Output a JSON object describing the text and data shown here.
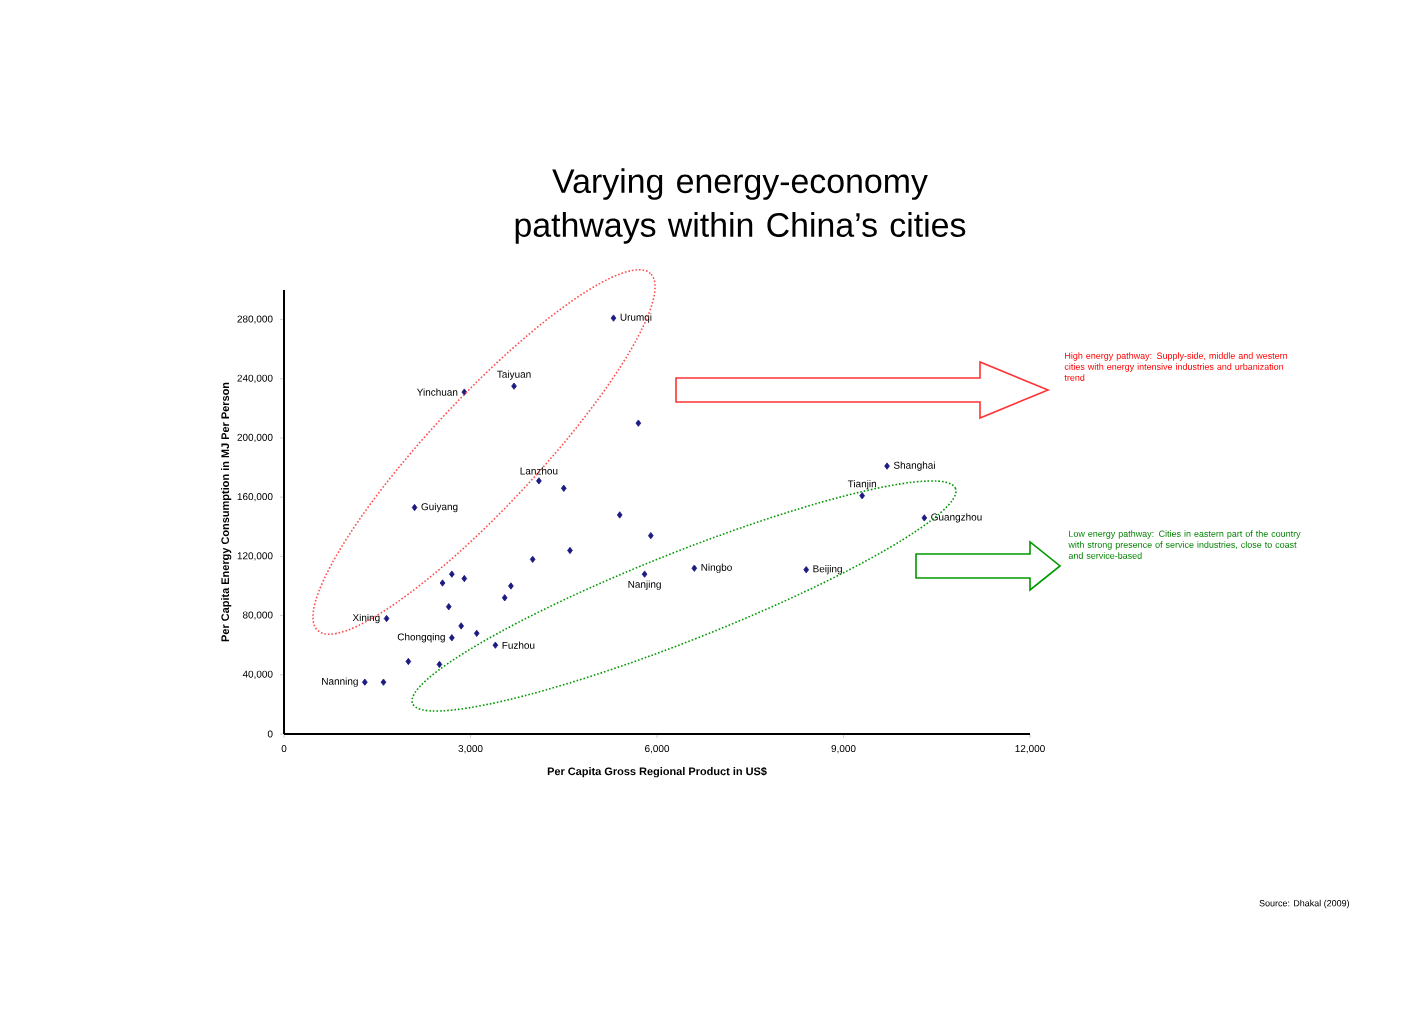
{
  "chart_data": {
    "type": "scatter",
    "title": "Varying energy-economy pathways within China’s cities",
    "xlabel": "Per Capita Gross Regional Product in US$",
    "ylabel": "Per Capita Energy Consumption in MJ Per Person",
    "x": [
      5300,
      2900,
      3700,
      4100,
      2100,
      1650,
      2700,
      3400,
      1300,
      5800,
      6600,
      8400,
      9300,
      9700,
      10300,
      1600,
      5700,
      4500,
      5400,
      5900,
      4600,
      4000,
      2700,
      2550,
      2900,
      3650,
      3550,
      2650,
      2850,
      3100,
      2000,
      2500
    ],
    "values": [
      281000,
      231000,
      235000,
      171000,
      153000,
      78000,
      65000,
      60000,
      35000,
      108000,
      112000,
      111000,
      161000,
      181000,
      146000,
      35000,
      210000,
      166000,
      148000,
      134000,
      124000,
      118000,
      108000,
      102000,
      105000,
      100000,
      92000,
      86000,
      73000,
      68000,
      49000,
      47000
    ],
    "color": "#1a1a80",
    "marker": "diamond",
    "xlim": [
      0,
      12000
    ],
    "ylim": [
      0,
      300000
    ],
    "xticks": [
      0,
      {
        "value": 3000,
        "label": "3,000"
      },
      {
        "value": 6000,
        "label": "6,000"
      },
      {
        "value": 9000,
        "label": "9,000"
      },
      {
        "value": 12000,
        "label": "12,000"
      }
    ],
    "yticks": [
      0,
      {
        "value": 40000,
        "label": "40,000"
      },
      {
        "value": 80000,
        "label": "80,000"
      },
      {
        "value": 120000,
        "label": "120,000"
      },
      {
        "value": 160000,
        "label": "160,000"
      },
      {
        "value": 200000,
        "label": "200,000"
      },
      {
        "value": 240000,
        "label": "240,000"
      },
      {
        "value": 280000,
        "label": "280,000"
      }
    ],
    "annotations": [
      "High energy pathway: Supply-side, middle and western cities with energy intensive industries and urbanization trend",
      "Low energy pathway: Cities in eastern part of the country with strong presence of service industries, close to coast and service-based",
      "Source: Dhakal (2009)",
      {
        "text": "Urumqi",
        "x": 5300,
        "y": 281000
      },
      {
        "text": "Yinchuan",
        "x": 2900,
        "y": 231000
      },
      {
        "text": "Taiyuan",
        "x": 3700,
        "y": 235000
      },
      {
        "text": "Lanzhou",
        "x": 4100,
        "y": 171000
      },
      {
        "text": "Guiyang",
        "x": 2100,
        "y": 153000
      },
      {
        "text": "Xining",
        "x": 1650,
        "y": 78000
      },
      {
        "text": "Chongqing",
        "x": 2700,
        "y": 65000
      },
      {
        "text": "Fuzhou",
        "x": 3400,
        "y": 60000
      },
      {
        "text": "Nanning",
        "x": 1300,
        "y": 35000
      },
      {
        "text": "Nanjing",
        "x": 5800,
        "y": 108000
      },
      {
        "text": "Ningbo",
        "x": 6600,
        "y": 112000
      },
      {
        "text": "Beijing",
        "x": 8400,
        "y": 111000
      },
      {
        "text": "Tianjin",
        "x": 9300,
        "y": 161000
      },
      {
        "text": "Shanghai",
        "x": 9700,
        "y": 181000
      },
      {
        "text": "Guangzhou",
        "x": 10300,
        "y": 146000
      }
    ]
  }
}
